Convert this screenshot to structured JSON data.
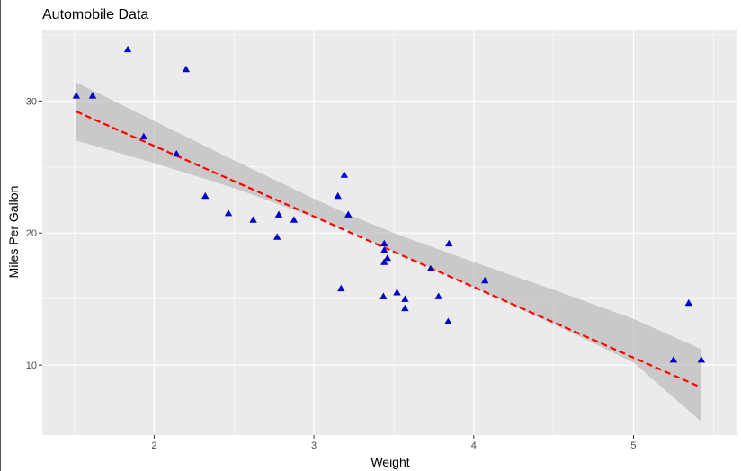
{
  "chart_data": {
    "type": "scatter",
    "title": "Automobile Data",
    "xlabel": "Weight",
    "ylabel": "Miles Per Gallon",
    "xlim": [
      1.3,
      5.65
    ],
    "ylim": [
      4.7,
      35.4
    ],
    "x_ticks": [
      2,
      3,
      4,
      5
    ],
    "y_ticks": [
      10,
      20,
      30
    ],
    "x_tick_labels": [
      "2",
      "3",
      "4",
      "5"
    ],
    "y_tick_labels": [
      "10",
      "20",
      "30"
    ],
    "grid": true,
    "legend": "none",
    "marker": "triangle",
    "colors": {
      "points": "#0000cc",
      "fit_line": "#ff0000",
      "confidence_band": "#b3b3b3",
      "panel": "#ebebeb",
      "grid": "#ffffff"
    },
    "points": [
      {
        "x": 2.62,
        "y": 21.0
      },
      {
        "x": 2.875,
        "y": 21.0
      },
      {
        "x": 2.32,
        "y": 22.8
      },
      {
        "x": 3.215,
        "y": 21.4
      },
      {
        "x": 3.44,
        "y": 18.7
      },
      {
        "x": 3.46,
        "y": 18.1
      },
      {
        "x": 3.57,
        "y": 14.3
      },
      {
        "x": 3.19,
        "y": 24.4
      },
      {
        "x": 3.15,
        "y": 22.8
      },
      {
        "x": 3.44,
        "y": 19.2
      },
      {
        "x": 3.44,
        "y": 17.8
      },
      {
        "x": 4.07,
        "y": 16.4
      },
      {
        "x": 3.73,
        "y": 17.3
      },
      {
        "x": 3.78,
        "y": 15.2
      },
      {
        "x": 5.25,
        "y": 10.4
      },
      {
        "x": 5.424,
        "y": 10.4
      },
      {
        "x": 5.345,
        "y": 14.7
      },
      {
        "x": 2.2,
        "y": 32.4
      },
      {
        "x": 1.615,
        "y": 30.4
      },
      {
        "x": 1.835,
        "y": 33.9
      },
      {
        "x": 2.465,
        "y": 21.5
      },
      {
        "x": 3.52,
        "y": 15.5
      },
      {
        "x": 3.435,
        "y": 15.2
      },
      {
        "x": 3.84,
        "y": 13.3
      },
      {
        "x": 3.845,
        "y": 19.2
      },
      {
        "x": 1.935,
        "y": 27.3
      },
      {
        "x": 2.14,
        "y": 26.0
      },
      {
        "x": 1.513,
        "y": 30.4
      },
      {
        "x": 3.17,
        "y": 15.8
      },
      {
        "x": 2.77,
        "y": 19.7
      },
      {
        "x": 3.57,
        "y": 15.0
      },
      {
        "x": 2.78,
        "y": 21.4
      }
    ],
    "fit": {
      "intercept": 37.285,
      "slope": -5.344,
      "x_range": [
        1.513,
        5.424
      ],
      "band": [
        {
          "x": 1.513,
          "lower": 27.0,
          "upper": 31.4
        },
        {
          "x": 2.0,
          "lower": 25.3,
          "upper": 28.5
        },
        {
          "x": 2.5,
          "lower": 23.4,
          "upper": 25.5
        },
        {
          "x": 3.0,
          "lower": 21.2,
          "upper": 22.6
        },
        {
          "x": 3.217,
          "lower": 20.2,
          "upper": 21.4
        },
        {
          "x": 3.5,
          "lower": 18.6,
          "upper": 20.0
        },
        {
          "x": 4.0,
          "lower": 15.9,
          "upper": 17.8
        },
        {
          "x": 4.5,
          "lower": 13.1,
          "upper": 15.7
        },
        {
          "x": 5.0,
          "lower": 10.2,
          "upper": 13.5
        },
        {
          "x": 5.424,
          "lower": 5.7,
          "upper": 11.2
        }
      ]
    }
  }
}
